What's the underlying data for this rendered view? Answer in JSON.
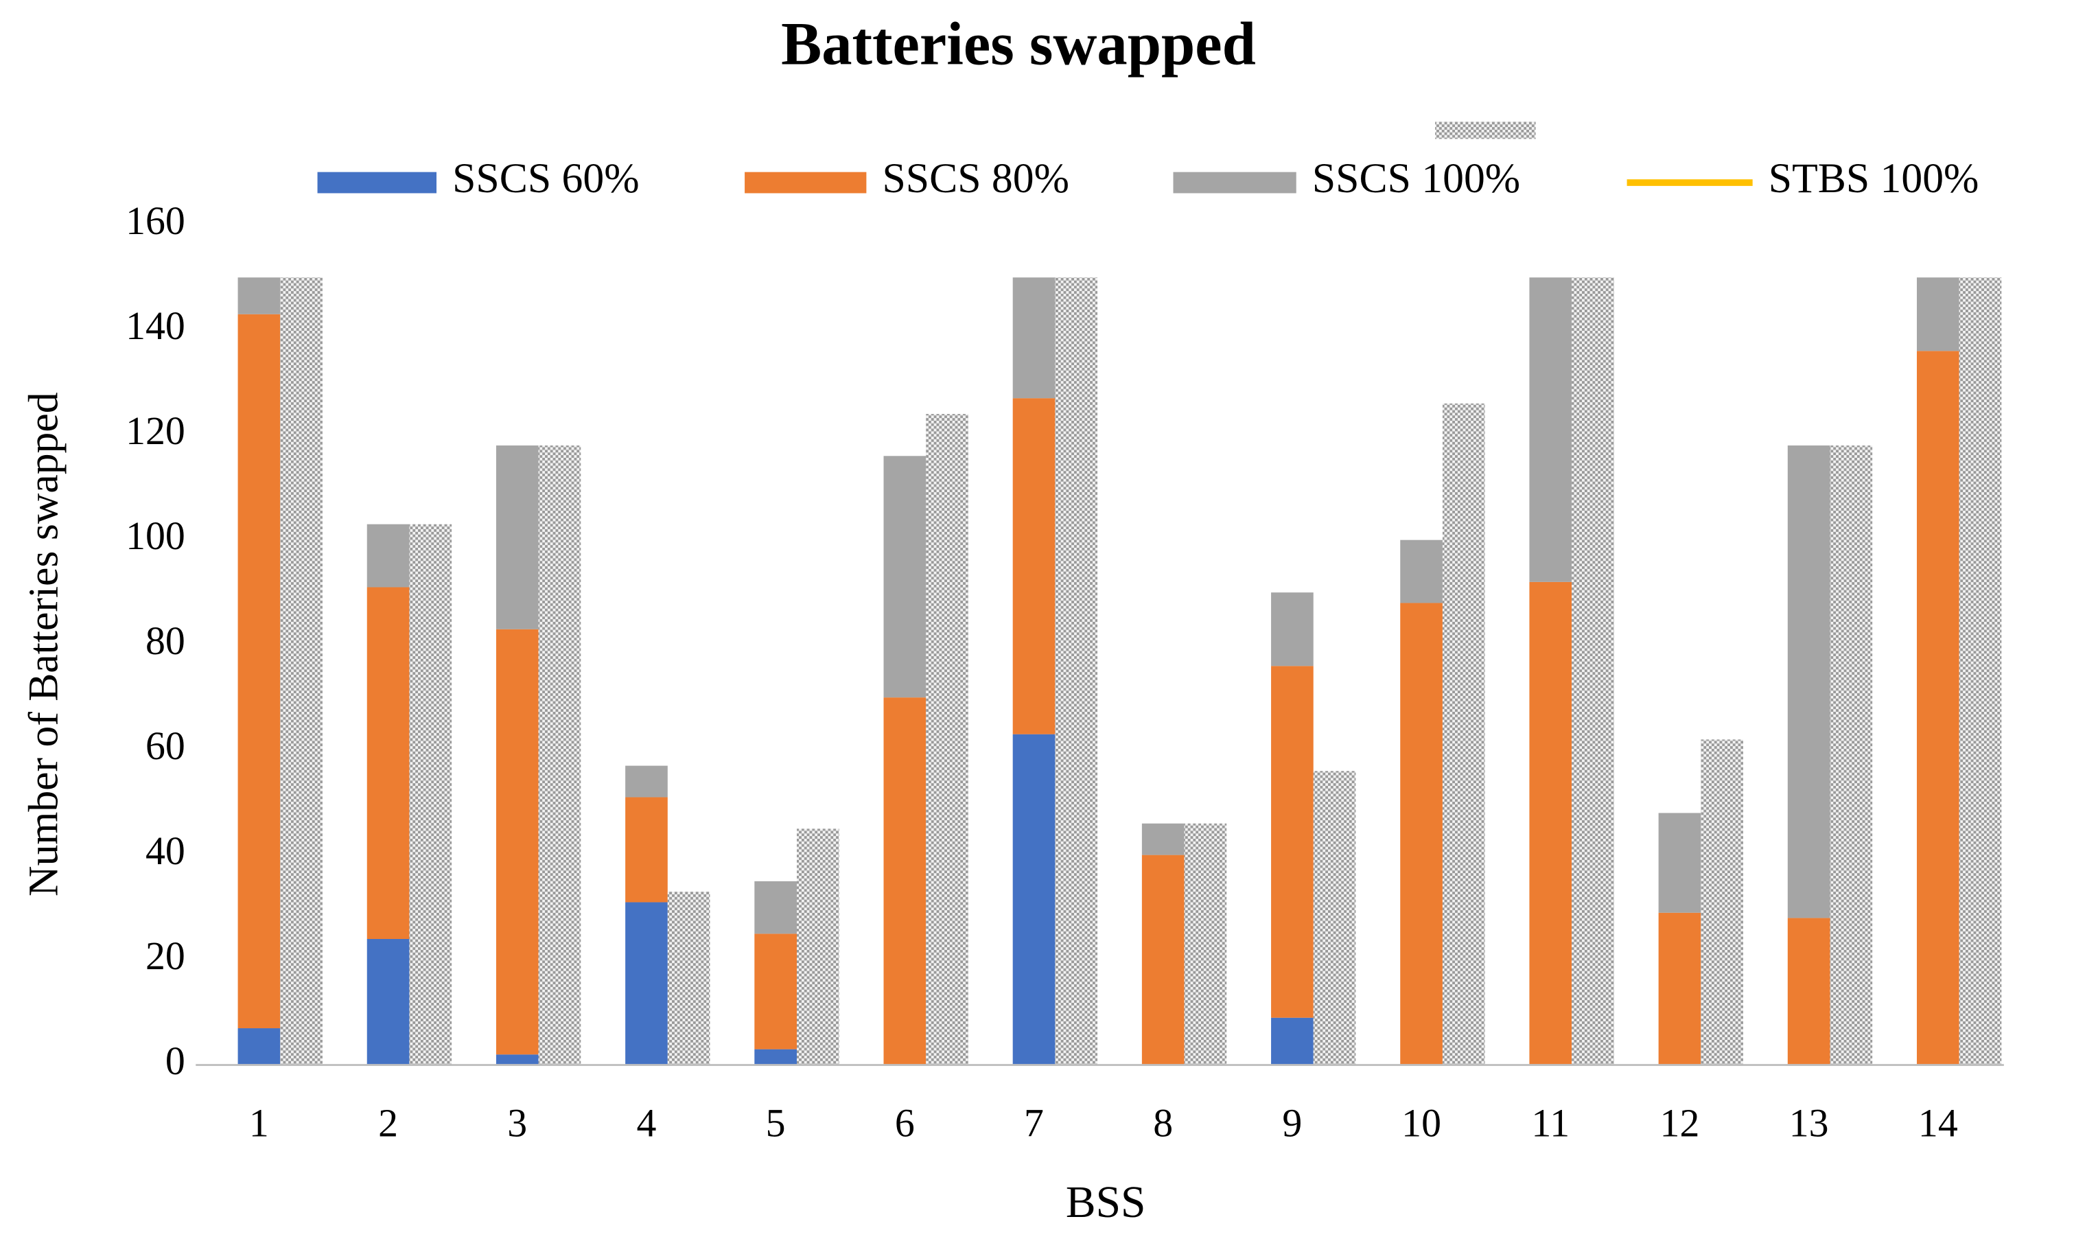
{
  "chart_data": {
    "type": "bar",
    "stacked": true,
    "title": "Batteries swapped",
    "x_label": "BSS",
    "y_label": "Number of Batteries swapped",
    "categories": [
      "1",
      "2",
      "3",
      "4",
      "5",
      "6",
      "7",
      "8",
      "9",
      "10",
      "11",
      "12",
      "13",
      "14"
    ],
    "series": [
      {
        "name": "SSCS 60%",
        "color": "#4472c4",
        "stack": "a",
        "values": [
          7,
          24,
          2,
          31,
          3,
          0,
          63,
          0,
          9,
          0,
          0,
          0,
          0,
          0
        ]
      },
      {
        "name": "SSCS 80%",
        "color": "#ed7d31",
        "stack": "a",
        "values": [
          136,
          67,
          81,
          20,
          22,
          70,
          64,
          40,
          67,
          88,
          92,
          29,
          28,
          136
        ]
      },
      {
        "name": "SSCS 100%",
        "color": "#a5a5a5",
        "stack": "a",
        "values": [
          7,
          12,
          35,
          6,
          10,
          46,
          23,
          6,
          14,
          12,
          58,
          19,
          90,
          14
        ]
      },
      {
        "name": "STBS 100%",
        "color": "#ffc000",
        "pattern": "dots",
        "stack": "b",
        "values": [
          150,
          103,
          118,
          33,
          45,
          124,
          150,
          46,
          56,
          126,
          150,
          62,
          118,
          150
        ]
      }
    ],
    "ylim": [
      0,
      160
    ],
    "yticks": [
      0,
      20,
      40,
      60,
      80,
      100,
      120,
      140,
      160
    ],
    "grid": false
  }
}
